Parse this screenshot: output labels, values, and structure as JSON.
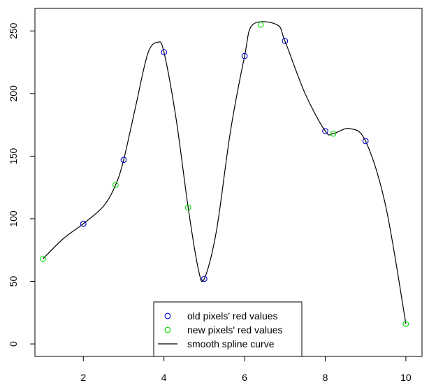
{
  "chart_data": {
    "type": "scatter",
    "title": "",
    "xlabel": "",
    "ylabel": "",
    "xlim": [
      0.8,
      10.4
    ],
    "ylim": [
      -10,
      268
    ],
    "x_ticks": [
      2,
      4,
      6,
      8,
      10
    ],
    "y_ticks": [
      0,
      50,
      100,
      150,
      200,
      250
    ],
    "grid": false,
    "legend_position": "bottom-center",
    "series": [
      {
        "name": "old pixels' red values",
        "kind": "points",
        "color": "#0000cc",
        "points": [
          {
            "x": 2,
            "y": 96
          },
          {
            "x": 3,
            "y": 147
          },
          {
            "x": 4,
            "y": 233
          },
          {
            "x": 5,
            "y": 52
          },
          {
            "x": 6,
            "y": 230
          },
          {
            "x": 7,
            "y": 242
          },
          {
            "x": 8,
            "y": 170
          },
          {
            "x": 9,
            "y": 162
          }
        ]
      },
      {
        "name": "new pixels' red values",
        "kind": "points",
        "color": "#00dd00",
        "points": [
          {
            "x": 1.0,
            "y": 68
          },
          {
            "x": 2.8,
            "y": 127
          },
          {
            "x": 4.6,
            "y": 109
          },
          {
            "x": 6.4,
            "y": 255
          },
          {
            "x": 8.2,
            "y": 168
          },
          {
            "x": 10.0,
            "y": 16
          }
        ]
      },
      {
        "name": "smooth spline curve",
        "kind": "line",
        "color": "#000000",
        "points": [
          {
            "x": 1.0,
            "y": 68
          },
          {
            "x": 1.5,
            "y": 84
          },
          {
            "x": 2.0,
            "y": 96
          },
          {
            "x": 2.5,
            "y": 110
          },
          {
            "x": 2.8,
            "y": 127
          },
          {
            "x": 3.0,
            "y": 147
          },
          {
            "x": 3.3,
            "y": 190
          },
          {
            "x": 3.6,
            "y": 232
          },
          {
            "x": 3.85,
            "y": 241
          },
          {
            "x": 4.0,
            "y": 233
          },
          {
            "x": 4.3,
            "y": 180
          },
          {
            "x": 4.6,
            "y": 109
          },
          {
            "x": 4.85,
            "y": 60
          },
          {
            "x": 5.0,
            "y": 52
          },
          {
            "x": 5.3,
            "y": 90
          },
          {
            "x": 5.65,
            "y": 170
          },
          {
            "x": 6.0,
            "y": 230
          },
          {
            "x": 6.2,
            "y": 255
          },
          {
            "x": 6.8,
            "y": 255
          },
          {
            "x": 7.0,
            "y": 242
          },
          {
            "x": 7.5,
            "y": 200
          },
          {
            "x": 8.0,
            "y": 170
          },
          {
            "x": 8.2,
            "y": 168
          },
          {
            "x": 8.6,
            "y": 172
          },
          {
            "x": 9.0,
            "y": 162
          },
          {
            "x": 9.5,
            "y": 110
          },
          {
            "x": 10.0,
            "y": 16
          }
        ]
      }
    ]
  }
}
